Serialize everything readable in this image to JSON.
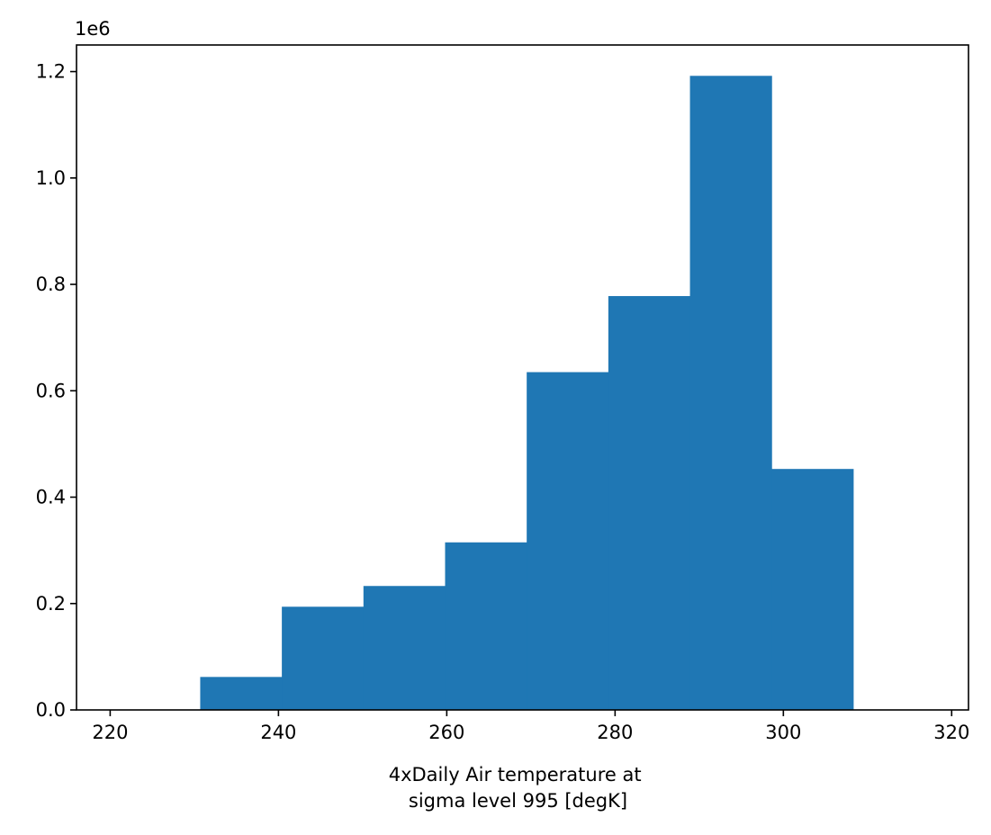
{
  "chart_data": {
    "type": "bar",
    "subtype": "histogram",
    "title": "",
    "xlabel_lines": [
      "4xDaily Air temperature at",
      "sigma level 995 [degK]"
    ],
    "ylabel": "",
    "y_offset_text": "1e6",
    "xlim": [
      216,
      322
    ],
    "ylim": [
      0,
      1.25
    ],
    "x_ticks": [
      220,
      240,
      260,
      280,
      300,
      320
    ],
    "y_ticks": [
      0.0,
      0.2,
      0.4,
      0.6,
      0.8,
      1.0,
      1.2
    ],
    "y_tick_labels": [
      "0.0",
      "0.2",
      "0.4",
      "0.6",
      "0.8",
      "1.0",
      "1.2"
    ],
    "bin_edges": [
      230.7,
      240.4,
      250.1,
      259.8,
      269.5,
      279.2,
      288.9,
      298.6,
      308.3
    ],
    "values": [
      0.062,
      0.194,
      0.233,
      0.315,
      0.635,
      0.778,
      1.192,
      0.453
    ],
    "value_scale": 1000000,
    "bar_color": "#1f77b4",
    "grid": false,
    "legend": "none"
  }
}
